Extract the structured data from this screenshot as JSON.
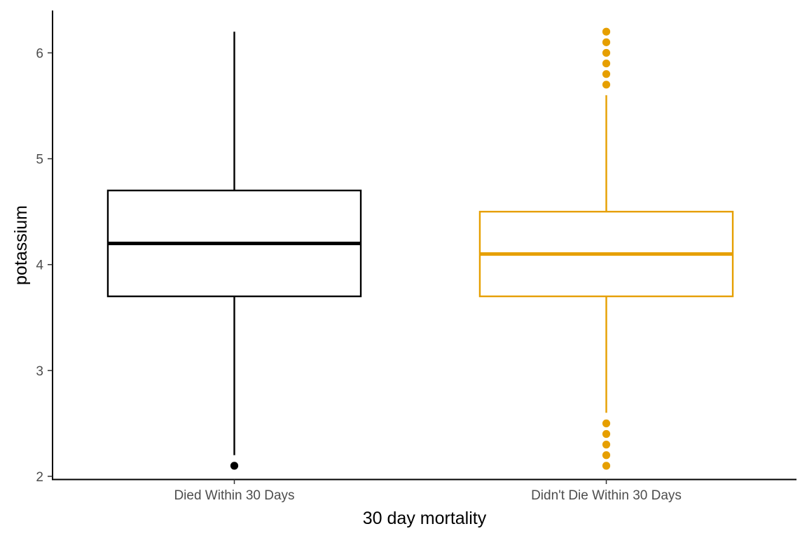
{
  "chart_data": {
    "type": "box",
    "title": "",
    "xlabel": "30 day mortality",
    "ylabel": "potassium",
    "ylim": [
      1.97,
      6.4
    ],
    "y_ticks": [
      2,
      3,
      4,
      5,
      6
    ],
    "y_tick_labels": [
      "2",
      "3",
      "4",
      "5",
      "6"
    ],
    "grid": false,
    "legend": "none",
    "categories": [
      "Died Within 30 Days",
      "Didn't Die Within 30 Days"
    ],
    "series": [
      {
        "category": "Died Within 30 Days",
        "color": "#000000",
        "whisker_low": 2.2,
        "q1": 3.7,
        "median": 4.2,
        "q3": 4.7,
        "whisker_high": 6.2,
        "outliers": [
          2.1
        ]
      },
      {
        "category": "Didn't Die Within 30 Days",
        "color": "#E69F00",
        "whisker_low": 2.6,
        "q1": 3.7,
        "median": 4.1,
        "q3": 4.5,
        "whisker_high": 5.6,
        "outliers": [
          2.1,
          2.2,
          2.3,
          2.4,
          2.5,
          5.7,
          5.8,
          5.9,
          6.0,
          6.1,
          6.2
        ]
      }
    ]
  }
}
